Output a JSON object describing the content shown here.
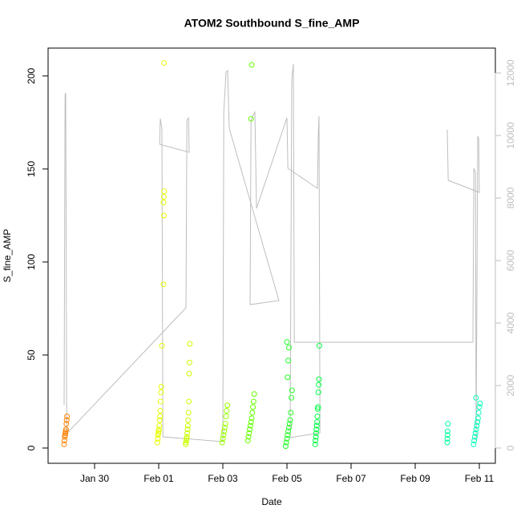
{
  "chart_data": {
    "type": "scatter",
    "title": "ATOM2 Southbound S_fine_AMP",
    "x_label": "Date",
    "y_label": "S_fine_AMP",
    "xlim": [
      28.55,
      42.5
    ],
    "ylim": [
      -8.2,
      215
    ],
    "y2lim": [
      -487,
      12795
    ],
    "xticks": [
      {
        "value": 30,
        "label": "Jan 30"
      },
      {
        "value": 32,
        "label": "Feb 01"
      },
      {
        "value": 34,
        "label": "Feb 03"
      },
      {
        "value": 36,
        "label": "Feb 05"
      },
      {
        "value": 38,
        "label": "Feb 07"
      },
      {
        "value": 40,
        "label": "Feb 09"
      },
      {
        "value": 42,
        "label": "Feb 11"
      }
    ],
    "yticks": [
      0,
      50,
      100,
      150,
      200
    ],
    "y2ticks": [
      0,
      2000,
      4000,
      6000,
      8000,
      10000,
      12000
    ],
    "y2_color": "#bebebe",
    "series": [
      {
        "color": "#ff8000",
        "x": [
          29.05,
          29.06,
          29.07,
          29.08,
          29.09,
          29.1,
          29.11,
          29.12,
          29.13,
          29.14
        ],
        "values": [
          2,
          4,
          6,
          7,
          8,
          9,
          10,
          13,
          15,
          17
        ]
      },
      {
        "color": "#e6ff00",
        "x": [
          31.96,
          31.97,
          31.98,
          31.99,
          32.0,
          32.01,
          32.02,
          32.03,
          32.04,
          32.05,
          32.06,
          32.07,
          32.08,
          32.1,
          32.15,
          32.16,
          32.15,
          32.16,
          32.17,
          32.17
        ],
        "values": [
          3,
          5,
          7,
          8,
          9,
          10,
          12,
          15,
          17,
          20,
          25,
          30,
          33,
          55,
          88,
          125,
          132,
          135,
          138,
          207
        ]
      },
      {
        "color": "#ccff00",
        "x": [
          32.84,
          32.85,
          32.86,
          32.87,
          32.88,
          32.89,
          32.9,
          32.91,
          32.92,
          32.93,
          32.94,
          32.95,
          32.96,
          32.97
        ],
        "values": [
          2,
          3,
          4,
          5,
          6,
          8,
          10,
          12,
          15,
          19,
          25,
          40,
          46,
          56
        ]
      },
      {
        "color": "#99ff00",
        "x": [
          33.98,
          34.0,
          34.02,
          34.04,
          34.06,
          34.08,
          34.1,
          34.12,
          34.14
        ],
        "values": [
          3,
          5,
          7,
          9,
          11,
          13,
          17,
          20,
          23
        ]
      },
      {
        "color": "#66ff00",
        "x": [
          34.78,
          34.8,
          34.82,
          34.84,
          34.86,
          34.88,
          34.9,
          34.92,
          34.94,
          34.96,
          34.98,
          34.88,
          34.9
        ],
        "values": [
          4,
          6,
          8,
          10,
          12,
          14,
          16,
          19,
          22,
          25,
          29,
          177,
          206
        ]
      },
      {
        "color": "#22ff22",
        "x": [
          35.96,
          35.98,
          36.0,
          36.02,
          36.04,
          36.06,
          36.08,
          36.1,
          36.12,
          36.14,
          36.16,
          36.02,
          36.04,
          36.06,
          36.0
        ],
        "values": [
          1,
          3,
          5,
          7,
          9,
          11,
          13,
          15,
          19,
          27,
          31,
          38,
          47,
          54,
          57
        ]
      },
      {
        "color": "#00ff44",
        "x": [
          36.88,
          36.89,
          36.9,
          36.91,
          36.92,
          36.93,
          36.94,
          36.95,
          36.96,
          36.97,
          36.98,
          36.99,
          37.0,
          37.01
        ],
        "values": [
          2,
          4,
          6,
          8,
          10,
          12,
          14,
          17,
          21,
          22,
          30,
          34,
          37,
          55
        ]
      },
      {
        "color": "#00ffa0",
        "x": [
          41.0,
          41.0,
          41.01,
          41.01,
          41.02
        ],
        "values": [
          3,
          5,
          7,
          9,
          13
        ]
      },
      {
        "color": "#00ffbb",
        "x": [
          41.82,
          41.84,
          41.86,
          41.88,
          41.9,
          41.92,
          41.94,
          41.96,
          41.98,
          42.0,
          42.02,
          41.9
        ],
        "values": [
          2,
          4,
          6,
          8,
          10,
          12,
          14,
          16,
          19,
          22,
          24,
          27
        ]
      },
      {
        "color": "#bebebe",
        "axis": "y2",
        "x": [
          29.05,
          29.08,
          29.1,
          29.13,
          32.85,
          32.88,
          32.93,
          32.95,
          32.03,
          32.05,
          32.1,
          32.13,
          34.0,
          34.03,
          34.1,
          34.15,
          34.2,
          35.75,
          34.85,
          34.88,
          34.93,
          35.0,
          35.05,
          36.0,
          36.03,
          36.95,
          36.98,
          37.0,
          37.03,
          36.1,
          36.15,
          36.2,
          36.23,
          41.8,
          41.83,
          41.88,
          41.9,
          41.95,
          41.98,
          42.0,
          41.03,
          41.0
        ],
        "values": [
          1385,
          11308,
          11359,
          462,
          4487,
          10487,
          10564,
          9462,
          9718,
          10538,
          10231,
          359,
          205,
          10744,
          12026,
          12077,
          10231,
          4718,
          4590,
          10487,
          10615,
          10744,
          7667,
          10564,
          8949,
          8308,
          10103,
          10615,
          487,
          333,
          11769,
          12282,
          3385,
          3385,
          8949,
          8821,
          231,
          9975,
          9900,
          8180,
          8564,
          10180
        ]
      }
    ]
  }
}
